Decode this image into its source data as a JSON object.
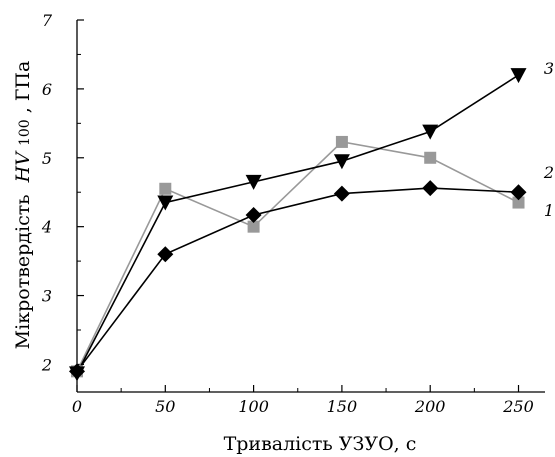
{
  "chart_data": {
    "type": "line",
    "xlabel": "Тривалість УЗУО, с",
    "ylabel_main": "Мікротвердість",
    "ylabel_var": "HV",
    "ylabel_sub": "100",
    "ylabel_unit": ", ГПа",
    "xlim": [
      0,
      265
    ],
    "ylim": [
      1.6,
      7.0
    ],
    "xticks": [
      0,
      50,
      100,
      150,
      200,
      250
    ],
    "yticks": [
      2,
      3,
      4,
      5,
      6,
      7
    ],
    "grid": false,
    "series": [
      {
        "name": "1",
        "marker": "diamond",
        "color": "#000000",
        "x": [
          0,
          50,
          100,
          150,
          200,
          250
        ],
        "y": [
          1.9,
          3.6,
          4.17,
          4.48,
          4.56,
          4.5
        ]
      },
      {
        "name": "2",
        "marker": "square",
        "color": "#999999",
        "x": [
          0,
          50,
          100,
          150,
          200,
          250
        ],
        "y": [
          1.9,
          4.55,
          4.0,
          5.23,
          5.0,
          4.35
        ]
      },
      {
        "name": "3",
        "marker": "triangle-down",
        "color": "#000000",
        "x": [
          0,
          50,
          100,
          150,
          200,
          250
        ],
        "y": [
          1.87,
          4.35,
          4.65,
          4.95,
          5.38,
          6.2
        ]
      }
    ]
  }
}
